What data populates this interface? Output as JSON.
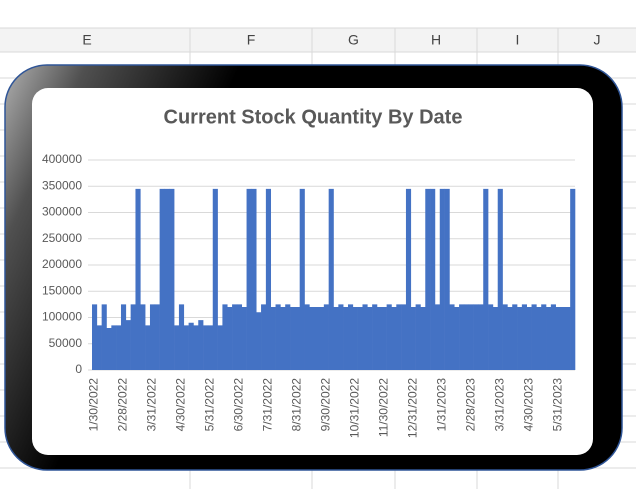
{
  "spreadsheet": {
    "column_headers": [
      "E",
      "F",
      "G",
      "H",
      "I",
      "J"
    ]
  },
  "chart_data": {
    "type": "bar",
    "title": "Current Stock Quantity By Date",
    "color": "#4472c4",
    "grid": true,
    "categories": [
      "1/30/2022",
      null,
      null,
      null,
      null,
      null,
      "2/28/2022",
      null,
      null,
      null,
      null,
      null,
      "3/31/2022",
      null,
      null,
      null,
      null,
      null,
      "4/30/2022",
      null,
      null,
      null,
      null,
      null,
      "5/31/2022",
      null,
      null,
      null,
      null,
      null,
      "6/30/2022",
      null,
      null,
      null,
      null,
      null,
      "7/31/2022",
      null,
      null,
      null,
      null,
      null,
      "8/31/2022",
      null,
      null,
      null,
      null,
      null,
      "9/30/2022",
      null,
      null,
      null,
      null,
      null,
      "10/31/2022",
      null,
      null,
      null,
      null,
      null,
      "11/30/2022",
      null,
      null,
      null,
      null,
      null,
      "12/31/2022",
      null,
      null,
      null,
      null,
      null,
      "1/31/2023",
      null,
      null,
      null,
      null,
      null,
      "2/28/2023",
      null,
      null,
      null,
      null,
      null,
      "3/31/2023",
      null,
      null,
      null,
      null,
      null,
      "4/30/2023",
      null,
      null,
      null,
      null,
      null,
      "5/31/2023",
      null,
      null,
      null
    ],
    "values": [
      125000,
      85000,
      125000,
      80000,
      85000,
      85000,
      125000,
      95000,
      125000,
      345000,
      125000,
      85000,
      125000,
      125000,
      345000,
      345000,
      345000,
      85000,
      125000,
      85000,
      90000,
      85000,
      95000,
      85000,
      85000,
      345000,
      85000,
      125000,
      120000,
      125000,
      125000,
      120000,
      345000,
      345000,
      110000,
      125000,
      345000,
      120000,
      125000,
      120000,
      125000,
      120000,
      120000,
      345000,
      125000,
      120000,
      120000,
      120000,
      125000,
      345000,
      120000,
      125000,
      120000,
      125000,
      120000,
      120000,
      125000,
      120000,
      125000,
      120000,
      120000,
      125000,
      120000,
      125000,
      125000,
      345000,
      120000,
      125000,
      120000,
      345000,
      345000,
      125000,
      345000,
      345000,
      125000,
      120000,
      125000,
      125000,
      125000,
      125000,
      125000,
      345000,
      125000,
      120000,
      345000,
      125000,
      120000,
      125000,
      120000,
      125000,
      120000,
      125000,
      120000,
      125000,
      120000,
      125000,
      120000,
      120000,
      120000,
      345000
    ],
    "ylim": [
      0,
      400000
    ],
    "yticks": [
      0,
      50000,
      100000,
      150000,
      200000,
      250000,
      300000,
      350000,
      400000
    ]
  }
}
